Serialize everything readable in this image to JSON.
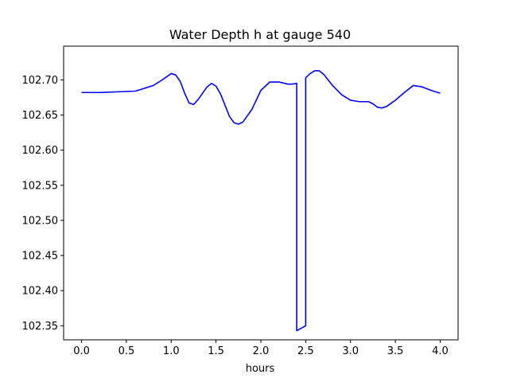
{
  "chart_data": {
    "type": "line",
    "title": "Water Depth h at gauge 540",
    "xlabel": "hours",
    "ylabel": "",
    "xlim": [
      -0.2,
      4.2
    ],
    "ylim": [
      102.33,
      102.748
    ],
    "grid": false,
    "x_ticks": [
      0.0,
      0.5,
      1.0,
      1.5,
      2.0,
      2.5,
      3.0,
      3.5,
      4.0
    ],
    "x_tick_labels": [
      "0.0",
      "0.5",
      "1.0",
      "1.5",
      "2.0",
      "2.5",
      "3.0",
      "3.5",
      "4.0"
    ],
    "y_ticks": [
      102.35,
      102.4,
      102.45,
      102.5,
      102.55,
      102.6,
      102.65,
      102.7
    ],
    "y_tick_labels": [
      "102.35",
      "102.40",
      "102.45",
      "102.50",
      "102.55",
      "102.60",
      "102.65",
      "102.70"
    ],
    "series": [
      {
        "color": "#0000ff",
        "x": [
          0.0,
          0.2,
          0.4,
          0.6,
          0.7,
          0.8,
          0.9,
          1.0,
          1.05,
          1.1,
          1.15,
          1.2,
          1.25,
          1.3,
          1.4,
          1.45,
          1.5,
          1.55,
          1.6,
          1.65,
          1.7,
          1.75,
          1.8,
          1.9,
          2.0,
          2.1,
          2.2,
          2.3,
          2.35,
          2.4,
          2.4,
          2.5,
          2.5,
          2.55,
          2.6,
          2.65,
          2.7,
          2.8,
          2.9,
          3.0,
          3.1,
          3.2,
          3.25,
          3.3,
          3.35,
          3.4,
          3.5,
          3.6,
          3.7,
          3.8,
          3.9,
          4.0
        ],
        "y": [
          102.682,
          102.682,
          102.683,
          102.684,
          102.688,
          102.692,
          102.7,
          102.709,
          102.707,
          102.698,
          102.681,
          102.667,
          102.665,
          102.672,
          102.69,
          102.695,
          102.691,
          102.68,
          102.664,
          102.648,
          102.639,
          102.637,
          102.64,
          102.658,
          102.685,
          102.697,
          102.697,
          102.694,
          102.694,
          102.695,
          102.343,
          102.35,
          102.703,
          102.709,
          102.713,
          102.713,
          102.708,
          102.692,
          102.679,
          102.671,
          102.669,
          102.669,
          102.666,
          102.661,
          102.66,
          102.662,
          102.671,
          102.682,
          102.692,
          102.69,
          102.685,
          102.681
        ]
      }
    ]
  }
}
